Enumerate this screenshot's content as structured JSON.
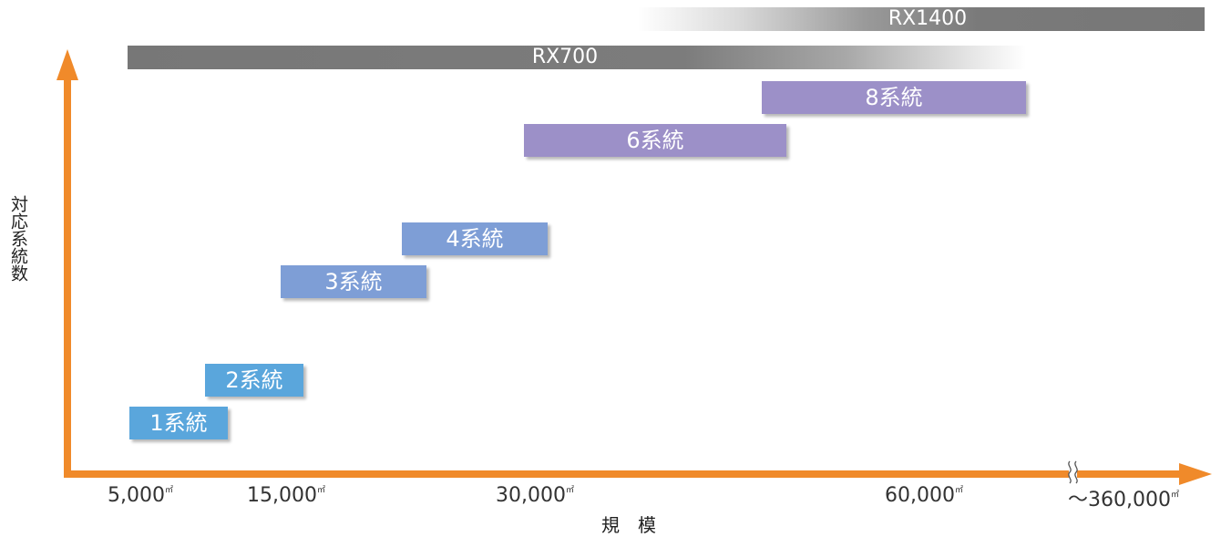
{
  "colors": {
    "axis": "#f08a2a",
    "range_bar": "#777777",
    "system_blue": "#5aa6dc",
    "system_steel": "#7e9ed6",
    "system_violet": "#9c90c8"
  },
  "ranges": {
    "rx1400": "RX1400",
    "rx700": "RX700"
  },
  "systems": {
    "s1": "1系統",
    "s2": "2系統",
    "s3": "3系統",
    "s4": "4系統",
    "s6": "6系統",
    "s8": "8系統"
  },
  "axes": {
    "y_title": "対応系統数",
    "x_title": "規模",
    "x_ticks": {
      "t1": "5,000",
      "t2": "15,000",
      "t3": "30,000",
      "t4": "60,000",
      "t5": "～360,000",
      "unit": "㎡"
    }
  }
}
